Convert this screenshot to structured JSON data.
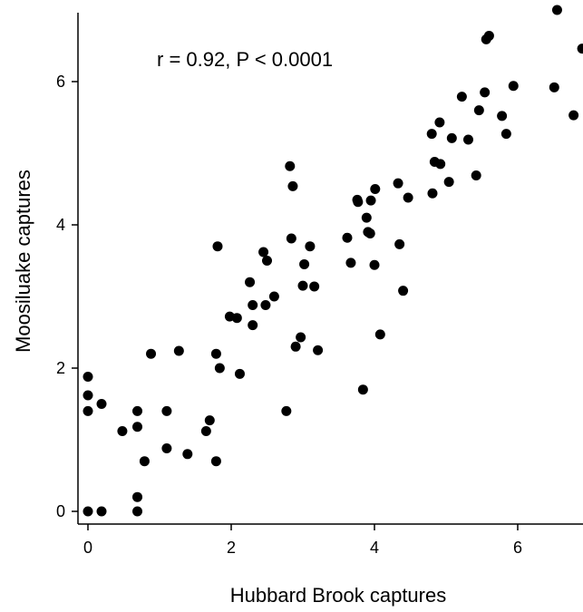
{
  "chart_data": {
    "type": "scatter",
    "title": "",
    "xlabel": "Hubbard Brook captures",
    "ylabel": "Moosiluake captures",
    "annotation": "r = 0.92, P < 0.0001",
    "xlim": [
      -0.2,
      6.9
    ],
    "ylim": [
      -0.2,
      7.0
    ],
    "x_ticks": [
      0,
      2,
      4,
      6
    ],
    "y_ticks": [
      0,
      2,
      4,
      6
    ],
    "x_tick_labels": [
      "0",
      "2",
      "4",
      "6"
    ],
    "y_tick_labels": [
      "0",
      "2",
      "4",
      "6"
    ],
    "grid": false,
    "legend": "none",
    "marker_color": "#000000",
    "points": [
      [
        0.0,
        1.88
      ],
      [
        0.0,
        1.62
      ],
      [
        0.0,
        1.4
      ],
      [
        0.0,
        0.0
      ],
      [
        0.19,
        0.0
      ],
      [
        0.19,
        1.5
      ],
      [
        0.48,
        1.12
      ],
      [
        0.69,
        1.4
      ],
      [
        0.69,
        1.18
      ],
      [
        0.69,
        0.2
      ],
      [
        0.69,
        0.0
      ],
      [
        0.79,
        0.7
      ],
      [
        0.88,
        2.2
      ],
      [
        1.1,
        1.4
      ],
      [
        1.1,
        0.88
      ],
      [
        1.27,
        2.24
      ],
      [
        1.39,
        0.8
      ],
      [
        1.65,
        1.12
      ],
      [
        1.7,
        1.27
      ],
      [
        1.79,
        2.2
      ],
      [
        1.79,
        0.7
      ],
      [
        1.81,
        3.7
      ],
      [
        1.84,
        2.0
      ],
      [
        1.98,
        2.72
      ],
      [
        2.08,
        2.7
      ],
      [
        2.12,
        1.92
      ],
      [
        2.26,
        3.2
      ],
      [
        2.3,
        2.88
      ],
      [
        2.3,
        2.6
      ],
      [
        2.45,
        3.62
      ],
      [
        2.48,
        2.88
      ],
      [
        2.5,
        3.5
      ],
      [
        2.6,
        3.0
      ],
      [
        2.77,
        1.4
      ],
      [
        2.82,
        4.82
      ],
      [
        2.84,
        3.81
      ],
      [
        2.86,
        4.54
      ],
      [
        2.9,
        2.3
      ],
      [
        2.97,
        2.43
      ],
      [
        3.0,
        3.15
      ],
      [
        3.02,
        3.45
      ],
      [
        3.1,
        3.7
      ],
      [
        3.16,
        3.14
      ],
      [
        3.21,
        2.25
      ],
      [
        3.62,
        3.82
      ],
      [
        3.67,
        3.47
      ],
      [
        3.76,
        4.35
      ],
      [
        3.77,
        4.32
      ],
      [
        3.84,
        1.7
      ],
      [
        3.89,
        4.1
      ],
      [
        3.91,
        3.9
      ],
      [
        3.94,
        3.88
      ],
      [
        3.95,
        4.34
      ],
      [
        4.0,
        3.44
      ],
      [
        4.01,
        4.5
      ],
      [
        4.08,
        2.47
      ],
      [
        4.33,
        4.58
      ],
      [
        4.35,
        3.73
      ],
      [
        4.4,
        3.08
      ],
      [
        4.47,
        4.38
      ],
      [
        4.8,
        5.27
      ],
      [
        4.81,
        4.44
      ],
      [
        4.84,
        4.88
      ],
      [
        4.91,
        5.43
      ],
      [
        4.92,
        4.85
      ],
      [
        5.04,
        4.6
      ],
      [
        5.08,
        5.21
      ],
      [
        5.22,
        5.79
      ],
      [
        5.31,
        5.19
      ],
      [
        5.42,
        4.69
      ],
      [
        5.46,
        5.6
      ],
      [
        5.54,
        5.85
      ],
      [
        5.56,
        6.59
      ],
      [
        5.6,
        6.64
      ],
      [
        5.78,
        5.52
      ],
      [
        5.84,
        5.27
      ],
      [
        5.94,
        5.94
      ],
      [
        6.51,
        5.92
      ],
      [
        6.55,
        7.0
      ],
      [
        6.78,
        5.53
      ],
      [
        6.9,
        6.46
      ]
    ]
  }
}
